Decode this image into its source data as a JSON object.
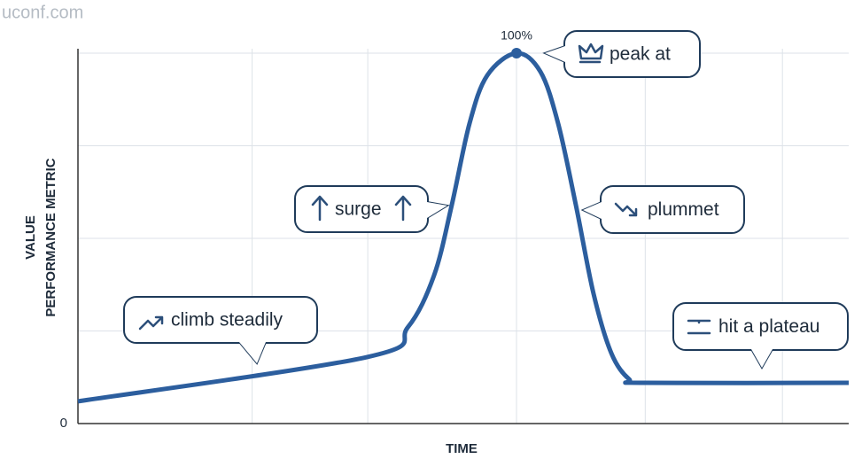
{
  "chart_data": {
    "type": "line",
    "watermark": "uconf.com",
    "x_label": "TIME",
    "y_label": [
      "VALUE",
      "PERFORMANCE METRIC"
    ],
    "x": [
      0,
      37.6,
      42.8,
      46.2,
      48.5,
      50.8,
      53.1,
      56.9,
      60,
      62.3,
      64.6,
      66.9,
      69.2,
      71.5,
      73.6,
      100
    ],
    "values": [
      6,
      18,
      26,
      40,
      59,
      81,
      94,
      100,
      95,
      81,
      59,
      35,
      19,
      12,
      11,
      11
    ],
    "value_labels": [
      null,
      null,
      null,
      null,
      null,
      null,
      null,
      "100%",
      null,
      null,
      null,
      null,
      null,
      null,
      null,
      null
    ],
    "color": "#2c5e9e",
    "xlim": [
      0,
      100
    ],
    "ylim": [
      0,
      100
    ],
    "yticks": [
      0
    ],
    "grid_y": [
      25,
      50,
      75,
      100
    ],
    "grid_x": [
      22.6,
      37.6,
      56.9,
      73.6,
      91.4
    ],
    "annotations": [
      "climb steadily",
      "surge",
      "peak at",
      "plummet",
      "hit a plateau"
    ]
  }
}
